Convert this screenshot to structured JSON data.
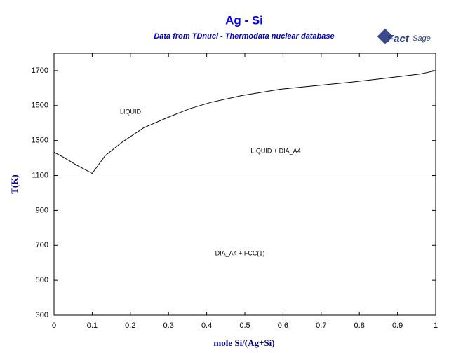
{
  "chart_data": {
    "type": "line",
    "title": "Ag - Si",
    "subtitle": "Data from TDnucl - Thermodata nuclear database",
    "x_label": "mole Si/(Ag+Si)",
    "y_label": "T(K)",
    "xlim": [
      0,
      1
    ],
    "xticks": [
      0,
      0.1,
      0.2,
      0.3,
      0.4,
      0.5,
      0.6,
      0.7,
      0.8,
      0.9,
      1
    ],
    "ylim": [
      300,
      1800
    ],
    "yticks": [
      300,
      500,
      700,
      900,
      1100,
      1300,
      1500,
      1700
    ],
    "grid": false,
    "series": [
      {
        "name": "liquidus",
        "color": "#000000",
        "x": [
          0,
          0.024,
          0.061,
          0.1,
          0.134,
          0.18,
          0.235,
          0.3,
          0.355,
          0.41,
          0.493,
          0.594,
          0.686,
          0.778,
          0.87,
          0.96,
          1
        ],
        "values": [
          1233,
          1205,
          1157,
          1112,
          1213,
          1293,
          1373,
          1434,
          1482,
          1518,
          1558,
          1594,
          1614,
          1634,
          1657,
          1681,
          1700
        ]
      },
      {
        "name": "eutectic",
        "color": "#000000",
        "x": [
          0,
          1
        ],
        "values": [
          1108,
          1108
        ]
      }
    ],
    "annotations": [
      "LIQUID",
      "LIQUID + DIA_A4",
      "DIA_A4 + FCC(1)"
    ]
  },
  "logo": {
    "left": "Fact",
    "right": "Sage"
  }
}
